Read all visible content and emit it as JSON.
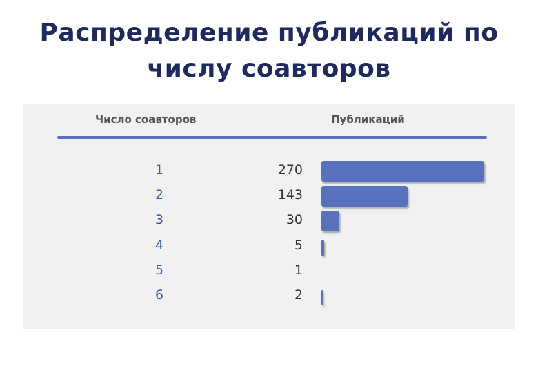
{
  "title_lines": [
    "Распределение публикаций по",
    "числу соавторов"
  ],
  "chart_data": {
    "type": "bar",
    "orientation": "horizontal",
    "columns": [
      "Число соавторов",
      "Публикаций"
    ],
    "categories": [
      "1",
      "2",
      "3",
      "4",
      "5",
      "6"
    ],
    "values": [
      270,
      143,
      30,
      5,
      1,
      2
    ],
    "colors": {
      "bar": "#5672bd",
      "rule": "#5b74b8",
      "category_text": "#3a5aa8",
      "title": "#1f2a5c"
    }
  }
}
